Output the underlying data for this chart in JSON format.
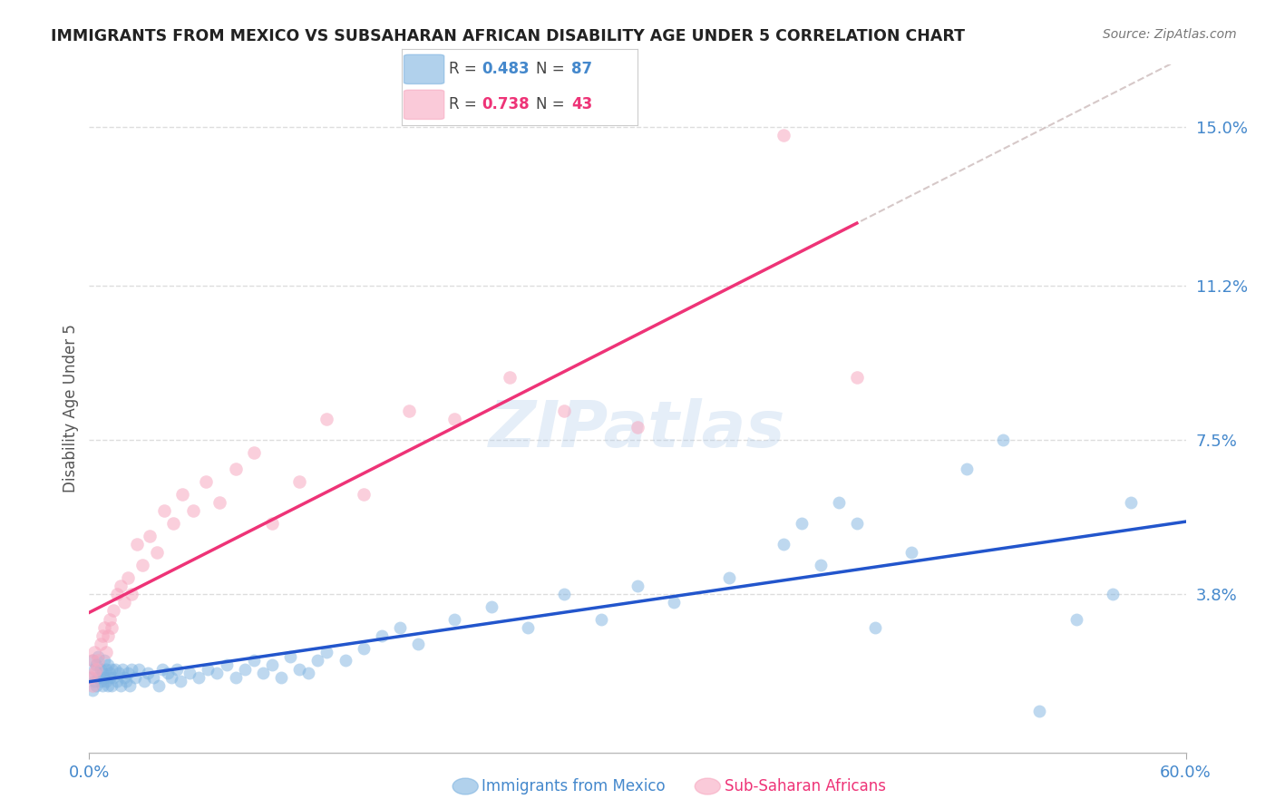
{
  "title": "IMMIGRANTS FROM MEXICO VS SUBSAHARAN AFRICAN DISABILITY AGE UNDER 5 CORRELATION CHART",
  "source": "Source: ZipAtlas.com",
  "ylabel": "Disability Age Under 5",
  "y_tick_values": [
    0.15,
    0.112,
    0.075,
    0.038
  ],
  "xlim": [
    0.0,
    0.6
  ],
  "ylim": [
    0.0,
    0.165
  ],
  "blue_color": "#7eb3e0",
  "pink_color": "#f7a8c0",
  "blue_line_color": "#2255cc",
  "pink_line_color": "#ee3377",
  "dashed_line_color": "#ccbbbb",
  "grid_color": "#dddddd",
  "title_color": "#222222",
  "right_label_color": "#4488cc",
  "background_color": "#ffffff",
  "mexico_x": [
    0.001,
    0.002,
    0.002,
    0.003,
    0.003,
    0.004,
    0.004,
    0.005,
    0.005,
    0.006,
    0.006,
    0.007,
    0.007,
    0.008,
    0.008,
    0.009,
    0.009,
    0.01,
    0.01,
    0.011,
    0.011,
    0.012,
    0.012,
    0.013,
    0.014,
    0.015,
    0.016,
    0.017,
    0.018,
    0.019,
    0.02,
    0.021,
    0.022,
    0.023,
    0.025,
    0.027,
    0.03,
    0.032,
    0.035,
    0.038,
    0.04,
    0.043,
    0.045,
    0.048,
    0.05,
    0.055,
    0.06,
    0.065,
    0.07,
    0.075,
    0.08,
    0.085,
    0.09,
    0.095,
    0.1,
    0.105,
    0.11,
    0.115,
    0.12,
    0.125,
    0.13,
    0.14,
    0.15,
    0.16,
    0.17,
    0.18,
    0.2,
    0.22,
    0.24,
    0.26,
    0.28,
    0.3,
    0.32,
    0.35,
    0.38,
    0.4,
    0.42,
    0.45,
    0.48,
    0.5,
    0.52,
    0.54,
    0.56,
    0.57,
    0.39,
    0.41,
    0.43
  ],
  "mexico_y": [
    0.018,
    0.015,
    0.022,
    0.017,
    0.02,
    0.016,
    0.021,
    0.018,
    0.023,
    0.017,
    0.02,
    0.016,
    0.019,
    0.018,
    0.022,
    0.017,
    0.02,
    0.016,
    0.021,
    0.018,
    0.019,
    0.016,
    0.02,
    0.018,
    0.02,
    0.017,
    0.019,
    0.016,
    0.02,
    0.018,
    0.017,
    0.019,
    0.016,
    0.02,
    0.018,
    0.02,
    0.017,
    0.019,
    0.018,
    0.016,
    0.02,
    0.019,
    0.018,
    0.02,
    0.017,
    0.019,
    0.018,
    0.02,
    0.019,
    0.021,
    0.018,
    0.02,
    0.022,
    0.019,
    0.021,
    0.018,
    0.023,
    0.02,
    0.019,
    0.022,
    0.024,
    0.022,
    0.025,
    0.028,
    0.03,
    0.026,
    0.032,
    0.035,
    0.03,
    0.038,
    0.032,
    0.04,
    0.036,
    0.042,
    0.05,
    0.045,
    0.055,
    0.048,
    0.068,
    0.075,
    0.01,
    0.032,
    0.038,
    0.06,
    0.055,
    0.06,
    0.03
  ],
  "subsaharan_x": [
    0.001,
    0.002,
    0.002,
    0.003,
    0.003,
    0.004,
    0.005,
    0.006,
    0.007,
    0.008,
    0.009,
    0.01,
    0.011,
    0.012,
    0.013,
    0.015,
    0.017,
    0.019,
    0.021,
    0.023,
    0.026,
    0.029,
    0.033,
    0.037,
    0.041,
    0.046,
    0.051,
    0.057,
    0.064,
    0.071,
    0.08,
    0.09,
    0.1,
    0.115,
    0.13,
    0.15,
    0.175,
    0.2,
    0.23,
    0.26,
    0.3,
    0.38,
    0.42
  ],
  "subsaharan_y": [
    0.018,
    0.016,
    0.022,
    0.019,
    0.024,
    0.02,
    0.022,
    0.026,
    0.028,
    0.03,
    0.024,
    0.028,
    0.032,
    0.03,
    0.034,
    0.038,
    0.04,
    0.036,
    0.042,
    0.038,
    0.05,
    0.045,
    0.052,
    0.048,
    0.058,
    0.055,
    0.062,
    0.058,
    0.065,
    0.06,
    0.068,
    0.072,
    0.055,
    0.065,
    0.08,
    0.062,
    0.082,
    0.08,
    0.09,
    0.082,
    0.078,
    0.148,
    0.09
  ],
  "blue_R": "0.483",
  "blue_N": "87",
  "pink_R": "0.738",
  "pink_N": "43",
  "watermark": "ZIPatlas",
  "bottom_label_blue": "Immigrants from Mexico",
  "bottom_label_pink": "Sub-Saharan Africans"
}
